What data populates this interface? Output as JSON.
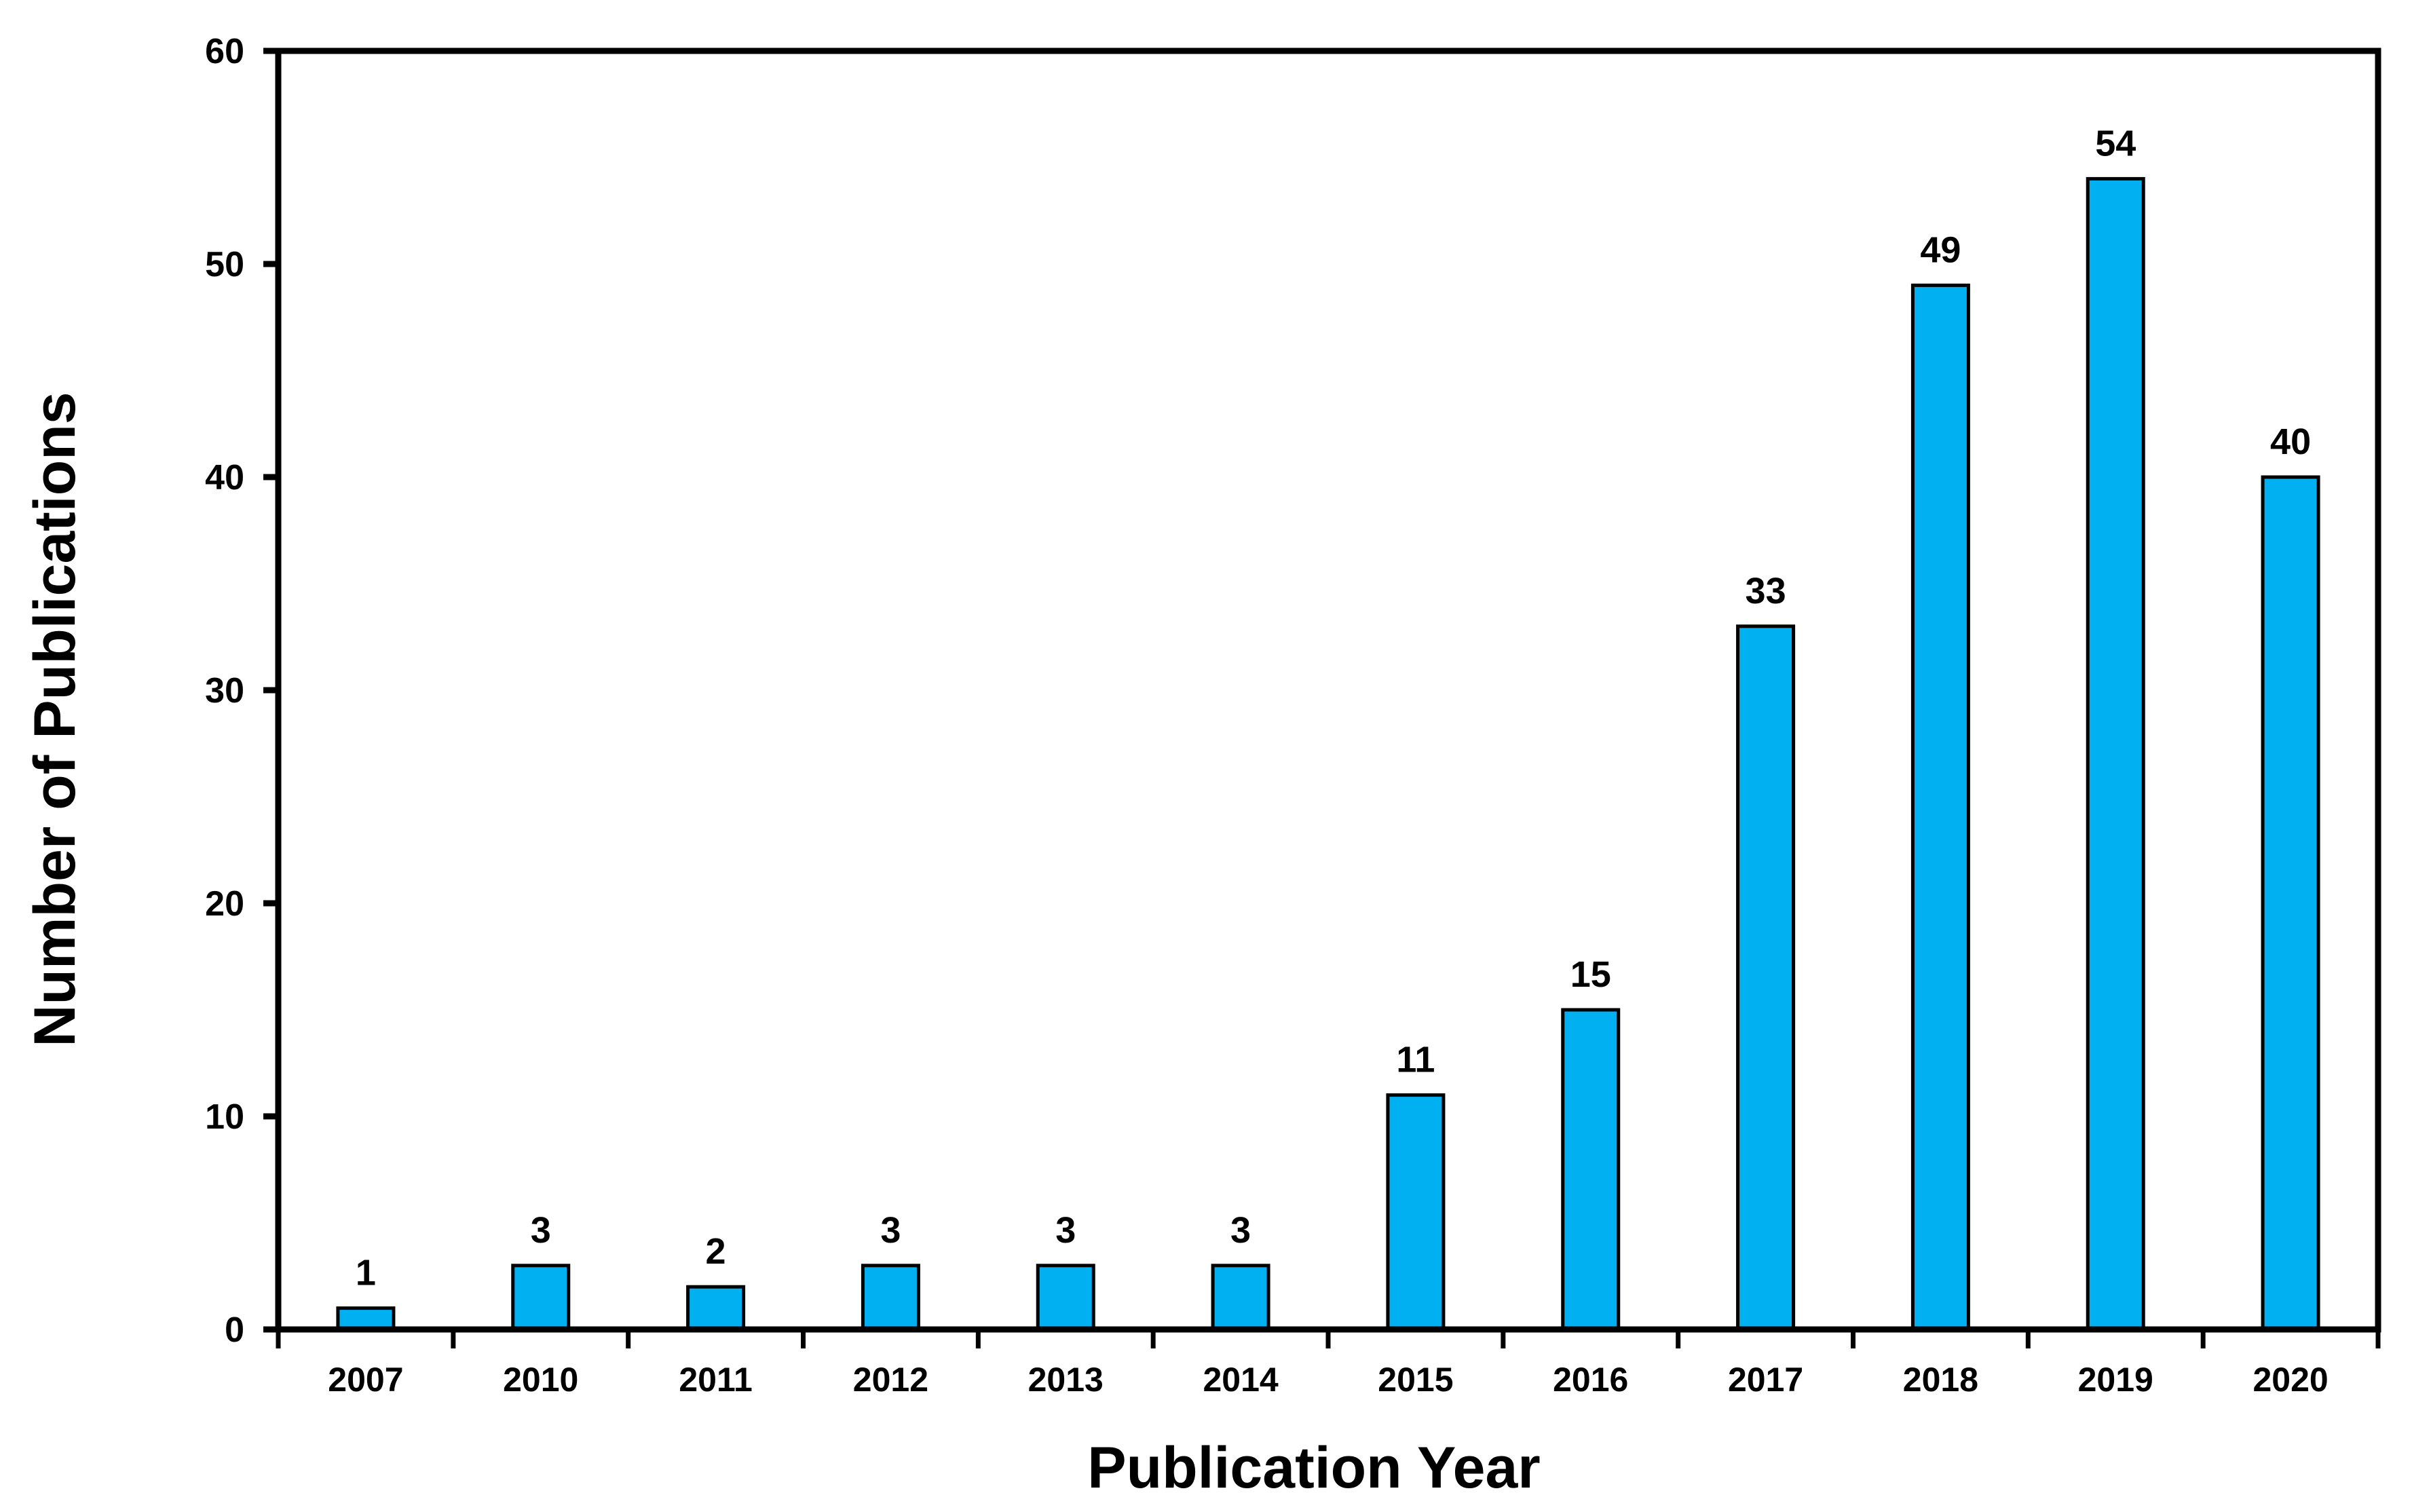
{
  "chart_data": {
    "type": "bar",
    "title": "",
    "xlabel": "Publication Year",
    "ylabel": "Number of Publications",
    "categories": [
      "2007",
      "2010",
      "2011",
      "2012",
      "2013",
      "2014",
      "2015",
      "2016",
      "2017",
      "2018",
      "2019",
      "2020"
    ],
    "values": [
      1,
      3,
      2,
      3,
      3,
      3,
      11,
      15,
      33,
      49,
      54,
      40
    ],
    "ylim": [
      0,
      60
    ],
    "yticks": [
      0,
      10,
      20,
      30,
      40,
      50,
      60
    ],
    "grid": false,
    "data_labels": true,
    "colors": {
      "bar": "#00B0F0",
      "outline": "#000000"
    }
  }
}
